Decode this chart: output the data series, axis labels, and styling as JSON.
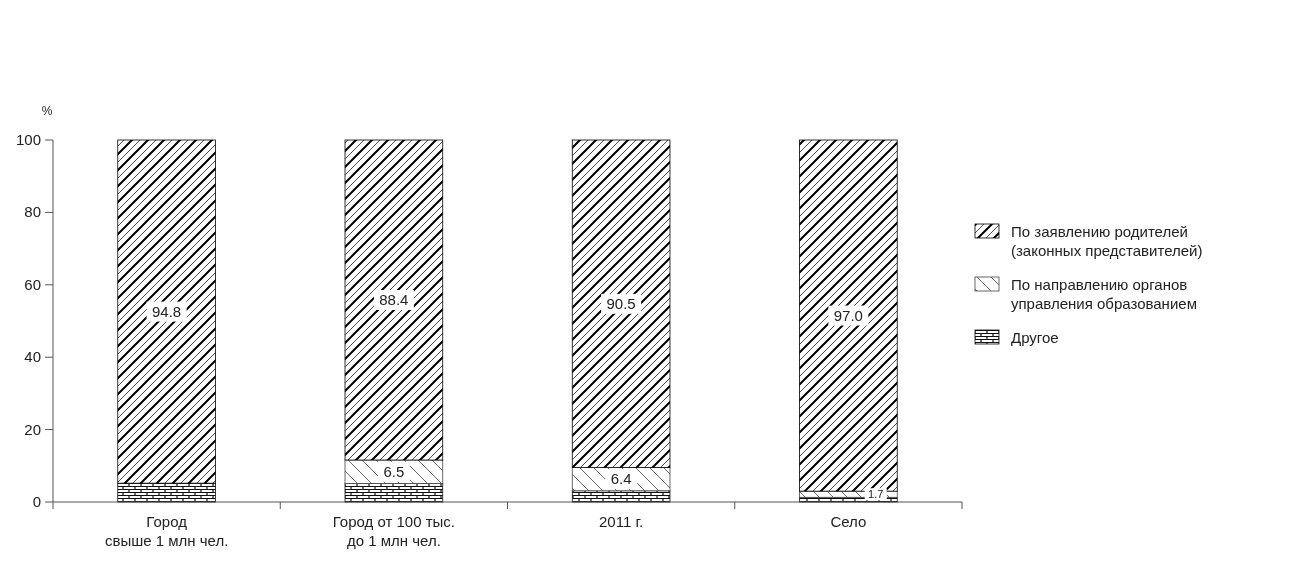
{
  "chart_data": {
    "type": "bar",
    "stacked": true,
    "ylabel": "%",
    "categories": [
      "Город\nсвыше 1 млн чел.",
      "Город от 100 тыс.\nдо 1 млн чел.",
      "2011 г.",
      "Село"
    ],
    "series": [
      {
        "name": "Другое",
        "color": "#111111",
        "values": [
          5.2,
          5.1,
          3.1,
          1.3
        ],
        "value_labels": [
          null,
          null,
          null,
          null
        ]
      },
      {
        "name": "По направлению органов\nуправления образованием",
        "color": "#444444",
        "values": [
          0,
          6.5,
          6.4,
          1.7
        ],
        "value_labels": [
          null,
          "6.5",
          "6.4",
          "1.7"
        ]
      },
      {
        "name": "По заявлению родителей\n(законных представителей)",
        "color": "#000000",
        "values": [
          94.8,
          88.4,
          90.5,
          97.0
        ],
        "value_labels": [
          "94.8",
          "88.4",
          "90.5",
          "97.0"
        ]
      }
    ],
    "ylim": [
      0,
      100
    ],
    "yticks": [
      0,
      20,
      40,
      60,
      80,
      100
    ],
    "legend": "right",
    "grid": false
  }
}
